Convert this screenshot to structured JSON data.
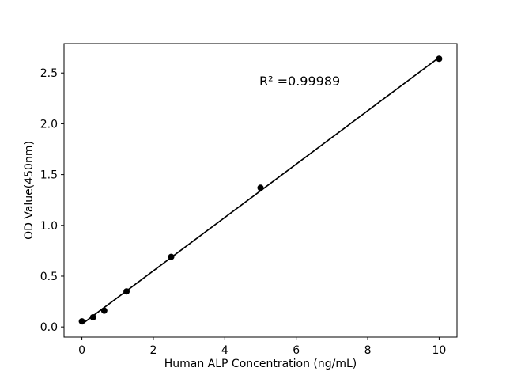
{
  "chart_data": {
    "type": "scatter",
    "title": "",
    "xlabel": "Human ALP Concentration (ng/mL)",
    "ylabel": "OD Value(450nm)",
    "annotation": "R² =0.99989",
    "x": [
      0,
      0.313,
      0.625,
      1.25,
      2.5,
      5,
      10
    ],
    "y": [
      0.055,
      0.095,
      0.16,
      0.35,
      0.69,
      1.37,
      2.64
    ],
    "xticks": [
      0,
      2,
      4,
      6,
      8,
      10
    ],
    "xtick_labels": [
      "0",
      "2",
      "4",
      "6",
      "8",
      "10"
    ],
    "yticks": [
      0.0,
      0.5,
      1.0,
      1.5,
      2.0,
      2.5
    ],
    "ytick_labels": [
      "0.0",
      "0.5",
      "1.0",
      "1.5",
      "2.0",
      "2.5"
    ],
    "xlim": [
      -0.5,
      10.5
    ],
    "ylim": [
      -0.1,
      2.79
    ],
    "fit_line": true,
    "grid": false,
    "legend": "none",
    "marker_color": "#000000",
    "line_color": "#000000",
    "axis_color": "#000000",
    "background_color": "#ffffff"
  }
}
